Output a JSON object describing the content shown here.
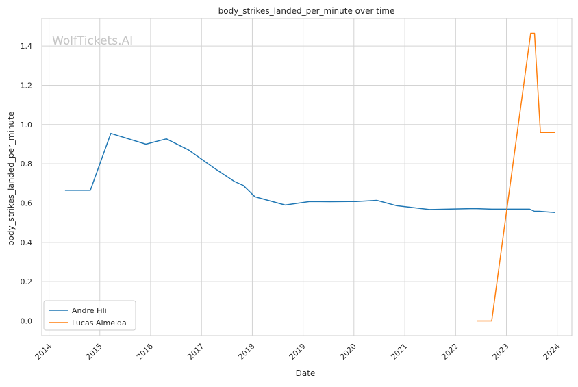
{
  "chart_data": {
    "type": "line",
    "title": "body_strikes_landed_per_minute over time",
    "xlabel": "Date",
    "ylabel": "body_strikes_landed_per_minute",
    "watermark": "WolfTickets.AI",
    "xlim": [
      "2013-11-10",
      "2024-04-15"
    ],
    "ylim": [
      -0.075,
      1.54
    ],
    "x_ticks": [
      "2014",
      "2015",
      "2016",
      "2017",
      "2018",
      "2019",
      "2020",
      "2021",
      "2022",
      "2023",
      "2024"
    ],
    "y_ticks": [
      "0.0",
      "0.2",
      "0.4",
      "0.6",
      "0.8",
      "1.0",
      "1.2",
      "1.4"
    ],
    "grid": true,
    "legend_position": "lower-left",
    "series": [
      {
        "name": "Andre Fili",
        "color": "#1f77b4",
        "points": [
          {
            "x": "2014-04-26",
            "y": 0.665
          },
          {
            "x": "2014-10-25",
            "y": 0.665
          },
          {
            "x": "2015-03-21",
            "y": 0.955
          },
          {
            "x": "2015-11-28",
            "y": 0.9
          },
          {
            "x": "2016-04-23",
            "y": 0.927
          },
          {
            "x": "2016-10-01",
            "y": 0.87
          },
          {
            "x": "2017-04-08",
            "y": 0.775
          },
          {
            "x": "2017-08-26",
            "y": 0.71
          },
          {
            "x": "2017-10-28",
            "y": 0.69
          },
          {
            "x": "2018-01-20",
            "y": 0.632
          },
          {
            "x": "2018-08-25",
            "y": 0.59
          },
          {
            "x": "2019-02-17",
            "y": 0.608
          },
          {
            "x": "2019-07-13",
            "y": 0.607
          },
          {
            "x": "2020-01-18",
            "y": 0.608
          },
          {
            "x": "2020-06-13",
            "y": 0.614
          },
          {
            "x": "2020-10-31",
            "y": 0.587
          },
          {
            "x": "2021-06-26",
            "y": 0.567
          },
          {
            "x": "2022-05-14",
            "y": 0.572
          },
          {
            "x": "2022-09-17",
            "y": 0.569
          },
          {
            "x": "2023-06-17",
            "y": 0.569
          },
          {
            "x": "2023-07-22",
            "y": 0.558
          },
          {
            "x": "2023-08-26",
            "y": 0.558
          },
          {
            "x": "2023-12-16",
            "y": 0.552
          }
        ]
      },
      {
        "name": "Lucas Almeida",
        "color": "#ff7f0e",
        "points": [
          {
            "x": "2022-06-04",
            "y": 0.0
          },
          {
            "x": "2022-09-17",
            "y": 0.0
          },
          {
            "x": "2023-06-24",
            "y": 1.465
          },
          {
            "x": "2023-07-22",
            "y": 1.465
          },
          {
            "x": "2023-09-02",
            "y": 0.96
          },
          {
            "x": "2023-12-16",
            "y": 0.96
          }
        ]
      }
    ]
  }
}
